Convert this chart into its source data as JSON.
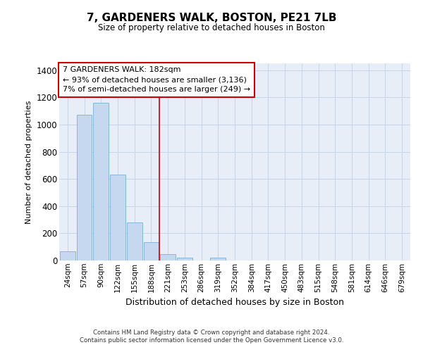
{
  "title": "7, GARDENERS WALK, BOSTON, PE21 7LB",
  "subtitle": "Size of property relative to detached houses in Boston",
  "xlabel": "Distribution of detached houses by size in Boston",
  "ylabel": "Number of detached properties",
  "bar_labels": [
    "24sqm",
    "57sqm",
    "90sqm",
    "122sqm",
    "155sqm",
    "188sqm",
    "221sqm",
    "253sqm",
    "286sqm",
    "319sqm",
    "352sqm",
    "384sqm",
    "417sqm",
    "450sqm",
    "483sqm",
    "515sqm",
    "548sqm",
    "581sqm",
    "614sqm",
    "646sqm",
    "679sqm"
  ],
  "bar_values": [
    65,
    1070,
    1160,
    630,
    280,
    135,
    45,
    20,
    0,
    20,
    0,
    0,
    0,
    0,
    0,
    0,
    0,
    0,
    0,
    0,
    0
  ],
  "bar_color": "#c5d8f0",
  "bar_edge_color": "#7aafd4",
  "grid_color": "#c8d4e8",
  "background_color": "#e8eef8",
  "vline_x": 5.5,
  "vline_color": "#cc0000",
  "annotation_text": "7 GARDENERS WALK: 182sqm\n← 93% of detached houses are smaller (3,136)\n7% of semi-detached houses are larger (249) →",
  "annotation_box_color": "#cc0000",
  "ylim": [
    0,
    1450
  ],
  "yticks": [
    0,
    200,
    400,
    600,
    800,
    1000,
    1200,
    1400
  ],
  "footer_text": "Contains HM Land Registry data © Crown copyright and database right 2024.\nContains public sector information licensed under the Open Government Licence v3.0.",
  "figsize": [
    6.0,
    5.0
  ],
  "dpi": 100
}
